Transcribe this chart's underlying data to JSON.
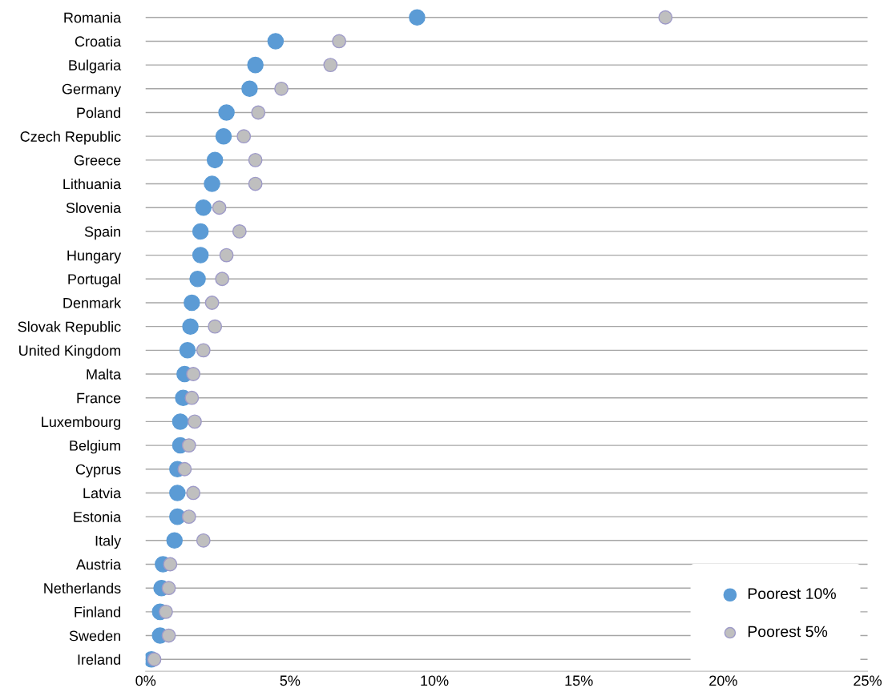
{
  "chart_data": {
    "type": "scatter",
    "orientation": "horizontal",
    "categories": [
      "Romania",
      "Croatia",
      "Bulgaria",
      "Germany",
      "Poland",
      "Czech Republic",
      "Greece",
      "Lithuania",
      "Slovenia",
      "Spain",
      "Hungary",
      "Portugal",
      "Denmark",
      "Slovak Republic",
      "United Kingdom",
      "Malta",
      "France",
      "Luxembourg",
      "Belgium",
      "Cyprus",
      "Latvia",
      "Estonia",
      "Italy",
      "Austria",
      "Netherlands",
      "Finland",
      "Sweden",
      "Ireland"
    ],
    "series": [
      {
        "name": "Poorest 10%",
        "color": "#5b9bd5",
        "values": [
          9.4,
          4.5,
          3.8,
          3.6,
          2.8,
          2.7,
          2.4,
          2.3,
          2.0,
          1.9,
          1.9,
          1.8,
          1.6,
          1.55,
          1.45,
          1.35,
          1.3,
          1.2,
          1.2,
          1.1,
          1.1,
          1.1,
          1.0,
          0.6,
          0.55,
          0.5,
          0.5,
          0.2
        ]
      },
      {
        "name": "Poorest 5%",
        "color": "#bfbfbf",
        "values": [
          18.0,
          6.7,
          6.4,
          4.7,
          3.9,
          3.4,
          3.8,
          3.8,
          2.55,
          3.25,
          2.8,
          2.65,
          2.3,
          2.4,
          2.0,
          1.65,
          1.6,
          1.7,
          1.5,
          1.35,
          1.65,
          1.5,
          2.0,
          0.85,
          0.8,
          0.7,
          0.8,
          0.3
        ]
      }
    ],
    "xlim": [
      0,
      25
    ],
    "xticks": [
      {
        "value": 0,
        "label": "0%"
      },
      {
        "value": 5,
        "label": "5%"
      },
      {
        "value": 10,
        "label": "10%"
      },
      {
        "value": 15,
        "label": "15%"
      },
      {
        "value": 20,
        "label": "20%"
      },
      {
        "value": 25,
        "label": "25%"
      }
    ],
    "grid": "y",
    "legend": "bottom right",
    "marker": "circle"
  }
}
